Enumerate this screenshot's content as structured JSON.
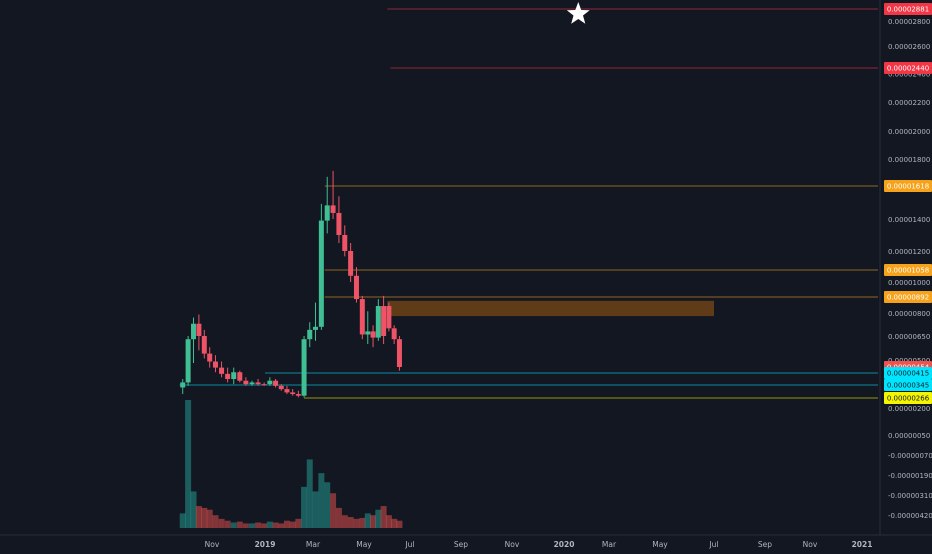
{
  "chart_data": {
    "type": "candlestick",
    "price_axis": {
      "ticks": [
        {
          "label": "0.00002800",
          "value": 2.8e-05
        },
        {
          "label": "0.00002600",
          "value": 2.6e-05
        },
        {
          "label": "0.00002400",
          "value": 2.4e-05
        },
        {
          "label": "0.00002200",
          "value": 2.2e-05
        },
        {
          "label": "0.00002000",
          "value": 2e-05
        },
        {
          "label": "0.00001800",
          "value": 1.8e-05
        },
        {
          "label": "0.00001400",
          "value": 1.4e-05
        },
        {
          "label": "0.00001200",
          "value": 1.2e-05
        },
        {
          "label": "0.00001000",
          "value": 1e-05
        },
        {
          "label": "0.00000800",
          "value": 8e-06
        },
        {
          "label": "0.00000650",
          "value": 6.5e-06
        },
        {
          "label": "0.00000500",
          "value": 5e-06
        },
        {
          "label": "0.00000200",
          "value": 2e-06
        },
        {
          "label": "0.00000050",
          "value": 5e-07
        },
        {
          "label": "-0.00000070",
          "value": -7e-07
        },
        {
          "label": "-0.00000190",
          "value": -1.9e-06
        },
        {
          "label": "-0.00000310",
          "value": -3.1e-06
        },
        {
          "label": "-0.00000420",
          "value": -4.2e-06
        }
      ]
    },
    "time_axis": {
      "ticks": [
        "Nov",
        "2019",
        "Mar",
        "May",
        "Jul",
        "Sep",
        "Nov",
        "2020",
        "Mar",
        "May",
        "Jul",
        "Sep",
        "Nov",
        "2021"
      ]
    },
    "levels": [
      {
        "label": "0.00002881",
        "value": 2.881e-05,
        "color": "#f23645",
        "from": "2019-06-01"
      },
      {
        "label": "0.00002440",
        "value": 2.44e-05,
        "color": "#f23645",
        "from": "2019-06-05"
      },
      {
        "label": "0.00001618",
        "value": 1.618e-05,
        "color": "#f7a21b",
        "from": "2019-03-15"
      },
      {
        "label": "0.00001058",
        "value": 1.058e-05,
        "color": "#f7a21b",
        "from": "2019-03-15"
      },
      {
        "label": "0.00000892",
        "value": 8.92e-06,
        "color": "#f7a21b",
        "from": "2019-03-15"
      },
      {
        "label": "0.00000454",
        "value": 4.54e-06,
        "color": "#ef5350",
        "from": null
      },
      {
        "label": "0.00000415",
        "value": 4.15e-06,
        "color": "#00e5ff",
        "from": "2019-01-01"
      },
      {
        "label": "0.00000345",
        "value": 3.45e-06,
        "color": "#00e5ff",
        "from": "2018-09-20"
      },
      {
        "label": "0.00000266",
        "value": 2.66e-06,
        "color": "#f5f500",
        "from": "2019-02-18"
      }
    ],
    "zone": {
      "from": "2019-06-01",
      "to": "2020-07-01",
      "high": 8.7e-06,
      "low": 7.8e-06,
      "color": "#7a4a14"
    },
    "star_marker": {
      "date": "2020-01-20",
      "value": 2.881e-05
    },
    "candles": [
      {
        "d": "2018-09-24",
        "o": 3.3e-06,
        "h": 3.8e-06,
        "l": 2.9e-06,
        "c": 3.6e-06,
        "v": 16
      },
      {
        "d": "2018-10-01",
        "o": 3.6e-06,
        "h": 6.5e-06,
        "l": 3.4e-06,
        "c": 6.3e-06,
        "v": 140
      },
      {
        "d": "2018-10-08",
        "o": 6.3e-06,
        "h": 7.7e-06,
        "l": 4.8e-06,
        "c": 7.3e-06,
        "v": 40
      },
      {
        "d": "2018-10-15",
        "o": 7.3e-06,
        "h": 7.9e-06,
        "l": 5.6e-06,
        "c": 6.5e-06,
        "v": 24
      },
      {
        "d": "2018-10-22",
        "o": 6.5e-06,
        "h": 6.9e-06,
        "l": 5.1e-06,
        "c": 5.4e-06,
        "v": 22
      },
      {
        "d": "2018-10-29",
        "o": 5.4e-06,
        "h": 5.8e-06,
        "l": 4.5e-06,
        "c": 4.9e-06,
        "v": 20
      },
      {
        "d": "2018-11-05",
        "o": 4.9e-06,
        "h": 5.3e-06,
        "l": 4.2e-06,
        "c": 4.5e-06,
        "v": 14
      },
      {
        "d": "2018-11-12",
        "o": 4.5e-06,
        "h": 4.9e-06,
        "l": 3.9e-06,
        "c": 4.1e-06,
        "v": 10
      },
      {
        "d": "2018-11-19",
        "o": 4.1e-06,
        "h": 4.5e-06,
        "l": 3.6e-06,
        "c": 3.8e-06,
        "v": 8
      },
      {
        "d": "2018-11-26",
        "o": 3.8e-06,
        "h": 4.5e-06,
        "l": 3.5e-06,
        "c": 4.2e-06,
        "v": 6
      },
      {
        "d": "2018-12-03",
        "o": 4.2e-06,
        "h": 4.3e-06,
        "l": 3.6e-06,
        "c": 3.7e-06,
        "v": 7
      },
      {
        "d": "2018-12-10",
        "o": 3.7e-06,
        "h": 3.9e-06,
        "l": 3.4e-06,
        "c": 3.5e-06,
        "v": 5
      },
      {
        "d": "2018-12-17",
        "o": 3.5e-06,
        "h": 3.7e-06,
        "l": 3.4e-06,
        "c": 3.6e-06,
        "v": 5
      },
      {
        "d": "2018-12-24",
        "o": 3.6e-06,
        "h": 3.8e-06,
        "l": 3.4e-06,
        "c": 3.5e-06,
        "v": 6
      },
      {
        "d": "2018-12-31",
        "o": 3.5e-06,
        "h": 3.6e-06,
        "l": 3.4e-06,
        "c": 3.45e-06,
        "v": 5
      },
      {
        "d": "2019-01-07",
        "o": 3.5e-06,
        "h": 3.9e-06,
        "l": 3.4e-06,
        "c": 3.7e-06,
        "v": 7
      },
      {
        "d": "2019-01-14",
        "o": 3.7e-06,
        "h": 3.8e-06,
        "l": 3.3e-06,
        "c": 3.4e-06,
        "v": 6
      },
      {
        "d": "2019-01-21",
        "o": 3.4e-06,
        "h": 3.5e-06,
        "l": 3.1e-06,
        "c": 3.2e-06,
        "v": 5
      },
      {
        "d": "2019-01-28",
        "o": 3.2e-06,
        "h": 3.4e-06,
        "l": 2.9e-06,
        "c": 3e-06,
        "v": 8
      },
      {
        "d": "2019-02-04",
        "o": 3e-06,
        "h": 3.2e-06,
        "l": 2.8e-06,
        "c": 2.9e-06,
        "v": 7
      },
      {
        "d": "2019-02-11",
        "o": 2.9e-06,
        "h": 3.1e-06,
        "l": 2.7e-06,
        "c": 2.8e-06,
        "v": 10
      },
      {
        "d": "2019-02-18",
        "o": 2.8e-06,
        "h": 6.5e-06,
        "l": 2.7e-06,
        "c": 6.3e-06,
        "v": 45
      },
      {
        "d": "2019-02-25",
        "o": 6.3e-06,
        "h": 7.4e-06,
        "l": 5.8e-06,
        "c": 6.9e-06,
        "v": 75
      },
      {
        "d": "2019-03-04",
        "o": 6.9e-06,
        "h": 8.6e-06,
        "l": 6.2e-06,
        "c": 7.1e-06,
        "v": 40
      },
      {
        "d": "2019-03-11",
        "o": 7.1e-06,
        "h": 1.5e-05,
        "l": 6.9e-06,
        "c": 1.39e-05,
        "v": 60
      },
      {
        "d": "2019-03-18",
        "o": 1.39e-05,
        "h": 1.68e-05,
        "l": 1.31e-05,
        "c": 1.49e-05,
        "v": 50
      },
      {
        "d": "2019-03-25",
        "o": 1.49e-05,
        "h": 1.72e-05,
        "l": 1.4e-05,
        "c": 1.44e-05,
        "v": 38
      },
      {
        "d": "2019-04-01",
        "o": 1.44e-05,
        "h": 1.55e-05,
        "l": 1.25e-05,
        "c": 1.3e-05,
        "v": 22
      },
      {
        "d": "2019-04-08",
        "o": 1.3e-05,
        "h": 1.36e-05,
        "l": 1.16e-05,
        "c": 1.2e-05,
        "v": 14
      },
      {
        "d": "2019-04-15",
        "o": 1.2e-05,
        "h": 1.25e-05,
        "l": 1e-05,
        "c": 1.03e-05,
        "v": 12
      },
      {
        "d": "2019-04-22",
        "o": 1.03e-05,
        "h": 1.08e-05,
        "l": 8.6e-06,
        "c": 8.8e-06,
        "v": 10
      },
      {
        "d": "2019-04-29",
        "o": 8.8e-06,
        "h": 9e-06,
        "l": 6.3e-06,
        "c": 6.6e-06,
        "v": 11
      },
      {
        "d": "2019-05-06",
        "o": 6.6e-06,
        "h": 8.1e-06,
        "l": 6e-06,
        "c": 6.8e-06,
        "v": 16
      },
      {
        "d": "2019-05-13",
        "o": 6.8e-06,
        "h": 7.2e-06,
        "l": 5.8e-06,
        "c": 6.4e-06,
        "v": 14
      },
      {
        "d": "2019-05-20",
        "o": 6.4e-06,
        "h": 8.8e-06,
        "l": 6.2e-06,
        "c": 8.4e-06,
        "v": 20
      },
      {
        "d": "2019-05-27",
        "o": 8.4e-06,
        "h": 9e-06,
        "l": 6e-06,
        "c": 6.5e-06,
        "v": 24
      },
      {
        "d": "2019-06-03",
        "o": 8.4e-06,
        "h": 8.6e-06,
        "l": 6.8e-06,
        "c": 7e-06,
        "v": 14
      },
      {
        "d": "2019-06-10",
        "o": 7e-06,
        "h": 7.2e-06,
        "l": 6e-06,
        "c": 6.3e-06,
        "v": 10
      },
      {
        "d": "2019-06-17",
        "o": 6.3e-06,
        "h": 6.5e-06,
        "l": 4.3e-06,
        "c": 4.54e-06,
        "v": 8
      }
    ]
  }
}
